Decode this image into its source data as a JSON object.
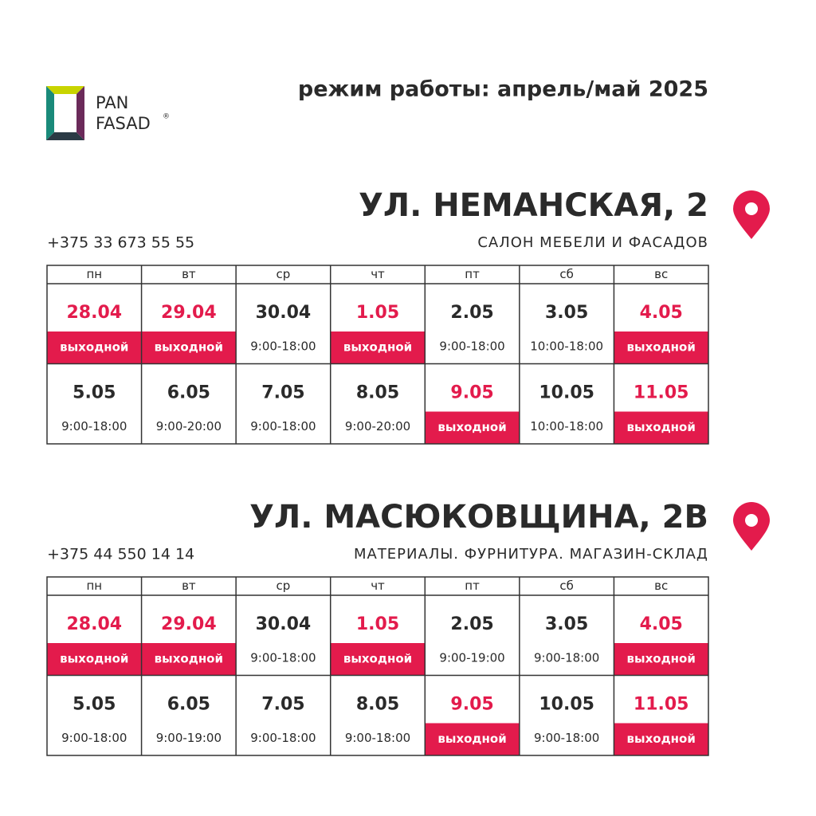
{
  "logo": {
    "line1": "PAN",
    "line2": "FASAD",
    "mark": "®"
  },
  "title": "режим работы:  апрель/май 2025",
  "locations": [
    {
      "name": "УЛ. НЕМАНСКАЯ, 2",
      "phone": "+375 33 673 55 55",
      "subtitle": "САЛОН МЕБЕЛИ И ФАСАДОВ",
      "days": [
        "пн",
        "вт",
        "ср",
        "чт",
        "пт",
        "сб",
        "вс"
      ],
      "weeks": [
        [
          {
            "date": "28.04",
            "status": "выходной",
            "closed": true
          },
          {
            "date": "29.04",
            "status": "выходной",
            "closed": true
          },
          {
            "date": "30.04",
            "status": "9:00-18:00",
            "closed": false
          },
          {
            "date": "1.05",
            "status": "выходной",
            "closed": true
          },
          {
            "date": "2.05",
            "status": "9:00-18:00",
            "closed": false
          },
          {
            "date": "3.05",
            "status": "10:00-18:00",
            "closed": false
          },
          {
            "date": "4.05",
            "status": "выходной",
            "closed": true
          }
        ],
        [
          {
            "date": "5.05",
            "status": "9:00-18:00",
            "closed": false
          },
          {
            "date": "6.05",
            "status": "9:00-20:00",
            "closed": false
          },
          {
            "date": "7.05",
            "status": "9:00-18:00",
            "closed": false
          },
          {
            "date": "8.05",
            "status": "9:00-20:00",
            "closed": false
          },
          {
            "date": "9.05",
            "status": "выходной",
            "closed": true
          },
          {
            "date": "10.05",
            "status": "10:00-18:00",
            "closed": false
          },
          {
            "date": "11.05",
            "status": "выходной",
            "closed": true
          }
        ]
      ]
    },
    {
      "name": "УЛ. МАСЮКОВЩИНА, 2В",
      "phone": "+375 44 550 14 14",
      "subtitle": "МАТЕРИАЛЫ. ФУРНИТУРА. МАГАЗИН-СКЛАД",
      "days": [
        "пн",
        "вт",
        "ср",
        "чт",
        "пт",
        "сб",
        "вс"
      ],
      "weeks": [
        [
          {
            "date": "28.04",
            "status": "выходной",
            "closed": true
          },
          {
            "date": "29.04",
            "status": "выходной",
            "closed": true
          },
          {
            "date": "30.04",
            "status": "9:00-18:00",
            "closed": false
          },
          {
            "date": "1.05",
            "status": "выходной",
            "closed": true
          },
          {
            "date": "2.05",
            "status": "9:00-19:00",
            "closed": false
          },
          {
            "date": "3.05",
            "status": "9:00-18:00",
            "closed": false
          },
          {
            "date": "4.05",
            "status": "выходной",
            "closed": true
          }
        ],
        [
          {
            "date": "5.05",
            "status": "9:00-18:00",
            "closed": false
          },
          {
            "date": "6.05",
            "status": "9:00-19:00",
            "closed": false
          },
          {
            "date": "7.05",
            "status": "9:00-18:00",
            "closed": false
          },
          {
            "date": "8.05",
            "status": "9:00-18:00",
            "closed": false
          },
          {
            "date": "9.05",
            "status": "выходной",
            "closed": true
          },
          {
            "date": "10.05",
            "status": "9:00-18:00",
            "closed": false
          },
          {
            "date": "11.05",
            "status": "выходной",
            "closed": true
          }
        ]
      ]
    }
  ]
}
